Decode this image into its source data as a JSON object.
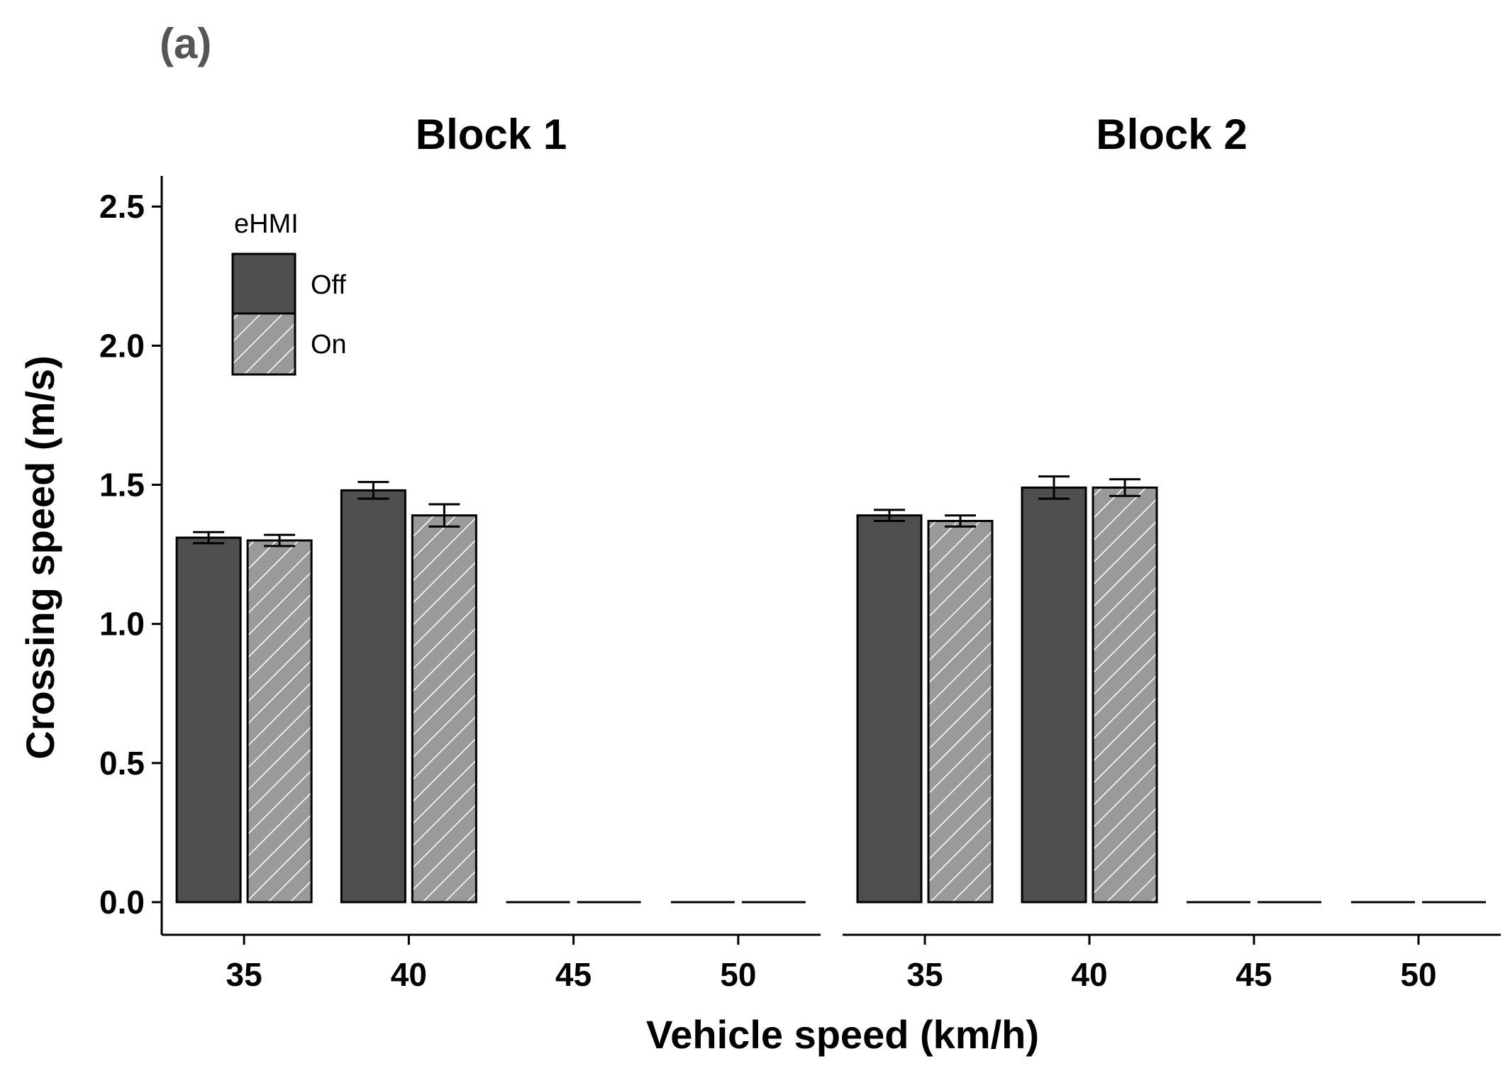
{
  "panel_label": "(a)",
  "colors": {
    "off": "#4f4f4f",
    "on": "#9a9a9a",
    "outline": "#000000",
    "hatch": "#ffffff"
  },
  "chart_data": {
    "type": "bar",
    "title": "",
    "xlabel": "Vehicle speed (km/h)",
    "ylabel": "Crossing speed (m/s)",
    "ylim": [
      0,
      2.6
    ],
    "yticks": [
      "0.0",
      "0.5",
      "1.0",
      "1.5",
      "2.0",
      "2.5"
    ],
    "categories": [
      "35",
      "40",
      "45",
      "50"
    ],
    "legend": {
      "title": "eHMI",
      "entries": [
        "Off",
        "On"
      ],
      "position": "top-left"
    },
    "facets": [
      {
        "label": "Block 1",
        "series": [
          {
            "name": "Off",
            "values": [
              1.31,
              1.48,
              0,
              0
            ],
            "err": [
              0.02,
              0.03,
              0,
              0
            ]
          },
          {
            "name": "On",
            "values": [
              1.3,
              1.39,
              0,
              0
            ],
            "err": [
              0.02,
              0.04,
              0,
              0
            ]
          }
        ]
      },
      {
        "label": "Block 2",
        "series": [
          {
            "name": "Off",
            "values": [
              1.39,
              1.49,
              0,
              0
            ],
            "err": [
              0.02,
              0.04,
              0,
              0
            ]
          },
          {
            "name": "On",
            "values": [
              1.37,
              1.49,
              0,
              0
            ],
            "err": [
              0.02,
              0.03,
              0,
              0
            ]
          }
        ]
      }
    ]
  }
}
